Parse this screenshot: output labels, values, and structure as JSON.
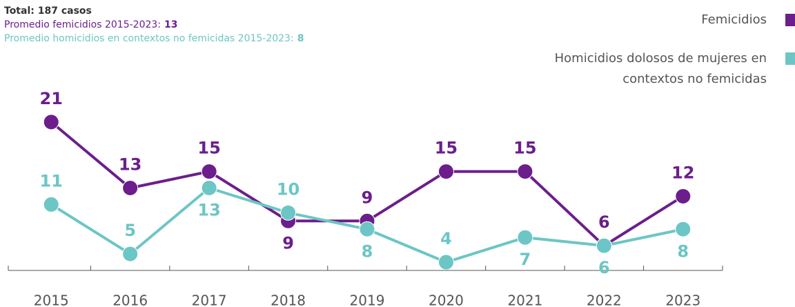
{
  "chart_data": {
    "type": "line",
    "title": "Total: 187 casos",
    "notes": [
      {
        "label": "Promedio femicidios 2015-2023:",
        "value": 13
      },
      {
        "label": "Promedio homicidios en contextos no femicidas 2015-2023:",
        "value": 8
      }
    ],
    "categories": [
      "2015",
      "2016",
      "2017",
      "2018",
      "2019",
      "2020",
      "2021",
      "2022",
      "2023"
    ],
    "series": [
      {
        "name": "Femicidios",
        "color": "#6b1e8c",
        "values": [
          21,
          13,
          15,
          9,
          9,
          15,
          15,
          6,
          12
        ]
      },
      {
        "name": "Homicidios dolosos de mujeres en contextos no femicidas",
        "color": "#6cc6c5",
        "values": [
          11,
          5,
          13,
          10,
          8,
          4,
          7,
          6,
          8
        ]
      }
    ],
    "ylim": [
      3,
      23
    ]
  }
}
